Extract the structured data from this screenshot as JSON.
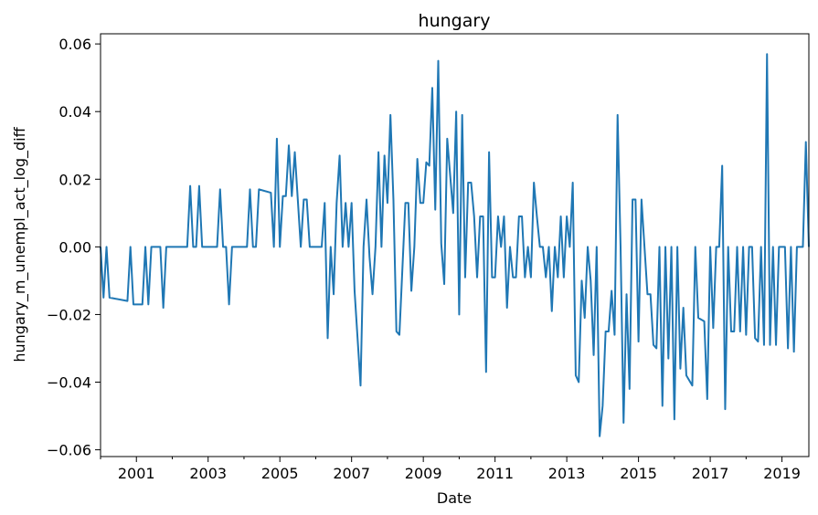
{
  "chart_data": {
    "type": "line",
    "title": "hungary",
    "xlabel": "Date",
    "ylabel": "hungary_m_unempl_act_log_diff",
    "xlim": [
      "2000-01",
      "2019-10"
    ],
    "ylim": [
      -0.062,
      0.063
    ],
    "x_ticks": [
      "2001",
      "2003",
      "2005",
      "2007",
      "2009",
      "2011",
      "2013",
      "2015",
      "2017",
      "2019"
    ],
    "y_ticks": [
      "−0.06",
      "−0.04",
      "−0.02",
      "0.00",
      "0.02",
      "0.04",
      "0.06"
    ],
    "grid": false,
    "series": [
      {
        "color": "#1f77b4",
        "points": [
          [
            "2000-01",
            0.0
          ],
          [
            "2000-02",
            -0.015
          ],
          [
            "2000-03",
            0.0
          ],
          [
            "2000-04",
            -0.015
          ],
          [
            "2000-10",
            -0.016
          ],
          [
            "2000-11",
            0.0
          ],
          [
            "2000-12",
            -0.017
          ],
          [
            "2001-03",
            -0.017
          ],
          [
            "2001-04",
            0.0
          ],
          [
            "2001-05",
            -0.017
          ],
          [
            "2001-06",
            0.0
          ],
          [
            "2001-09",
            0.0
          ],
          [
            "2001-10",
            -0.018
          ],
          [
            "2001-11",
            0.0
          ],
          [
            "2002-06",
            0.0
          ],
          [
            "2002-07",
            0.018
          ],
          [
            "2002-08",
            0.0
          ],
          [
            "2002-09",
            0.0
          ],
          [
            "2002-10",
            0.018
          ],
          [
            "2002-11",
            0.0
          ],
          [
            "2003-04",
            0.0
          ],
          [
            "2003-05",
            0.017
          ],
          [
            "2003-06",
            0.0
          ],
          [
            "2003-07",
            0.0
          ],
          [
            "2003-08",
            -0.017
          ],
          [
            "2003-09",
            0.0
          ],
          [
            "2004-02",
            0.0
          ],
          [
            "2004-03",
            0.017
          ],
          [
            "2004-04",
            0.0
          ],
          [
            "2004-05",
            0.0
          ],
          [
            "2004-06",
            0.017
          ],
          [
            "2004-10",
            0.016
          ],
          [
            "2004-11",
            0.0
          ],
          [
            "2004-12",
            0.032
          ],
          [
            "2005-01",
            0.0
          ],
          [
            "2005-02",
            0.015
          ],
          [
            "2005-03",
            0.015
          ],
          [
            "2005-04",
            0.03
          ],
          [
            "2005-05",
            0.015
          ],
          [
            "2005-06",
            0.028
          ],
          [
            "2005-07",
            0.014
          ],
          [
            "2005-08",
            0.0
          ],
          [
            "2005-09",
            0.014
          ],
          [
            "2005-10",
            0.014
          ],
          [
            "2005-11",
            0.0
          ],
          [
            "2006-03",
            0.0
          ],
          [
            "2006-04",
            0.013
          ],
          [
            "2006-05",
            -0.027
          ],
          [
            "2006-06",
            0.0
          ],
          [
            "2006-07",
            -0.014
          ],
          [
            "2006-08",
            0.013
          ],
          [
            "2006-09",
            0.027
          ],
          [
            "2006-10",
            0.0
          ],
          [
            "2006-11",
            0.013
          ],
          [
            "2006-12",
            0.0
          ],
          [
            "2007-01",
            0.013
          ],
          [
            "2007-02",
            -0.013
          ],
          [
            "2007-04",
            -0.041
          ],
          [
            "2007-05",
            0.0
          ],
          [
            "2007-06",
            0.014
          ],
          [
            "2007-07",
            -0.003
          ],
          [
            "2007-08",
            -0.014
          ],
          [
            "2007-09",
            0.0
          ],
          [
            "2007-10",
            0.028
          ],
          [
            "2007-11",
            0.0
          ],
          [
            "2007-12",
            0.027
          ],
          [
            "2008-01",
            0.013
          ],
          [
            "2008-02",
            0.039
          ],
          [
            "2008-03",
            0.014
          ],
          [
            "2008-04",
            -0.025
          ],
          [
            "2008-05",
            -0.026
          ],
          [
            "2008-07",
            0.013
          ],
          [
            "2008-08",
            0.013
          ],
          [
            "2008-09",
            -0.013
          ],
          [
            "2008-10",
            0.0
          ],
          [
            "2008-11",
            0.026
          ],
          [
            "2008-12",
            0.013
          ],
          [
            "2009-01",
            0.013
          ],
          [
            "2009-02",
            0.025
          ],
          [
            "2009-03",
            0.024
          ],
          [
            "2009-04",
            0.047
          ],
          [
            "2009-05",
            0.011
          ],
          [
            "2009-06",
            0.055
          ],
          [
            "2009-07",
            0.001
          ],
          [
            "2009-08",
            -0.011
          ],
          [
            "2009-09",
            0.032
          ],
          [
            "2009-10",
            0.021
          ],
          [
            "2009-11",
            0.01
          ],
          [
            "2009-12",
            0.04
          ],
          [
            "2010-01",
            -0.02
          ],
          [
            "2010-02",
            0.039
          ],
          [
            "2010-03",
            -0.009
          ],
          [
            "2010-04",
            0.019
          ],
          [
            "2010-05",
            0.019
          ],
          [
            "2010-06",
            0.009
          ],
          [
            "2010-07",
            -0.009
          ],
          [
            "2010-08",
            0.009
          ],
          [
            "2010-09",
            0.009
          ],
          [
            "2010-10",
            -0.037
          ],
          [
            "2010-11",
            0.028
          ],
          [
            "2010-12",
            -0.009
          ],
          [
            "2011-01",
            -0.009
          ],
          [
            "2011-02",
            0.009
          ],
          [
            "2011-03",
            0.0
          ],
          [
            "2011-04",
            0.009
          ],
          [
            "2011-05",
            -0.018
          ],
          [
            "2011-06",
            0.0
          ],
          [
            "2011-07",
            -0.009
          ],
          [
            "2011-08",
            -0.009
          ],
          [
            "2011-09",
            0.009
          ],
          [
            "2011-10",
            0.009
          ],
          [
            "2011-11",
            -0.009
          ],
          [
            "2011-12",
            0.0
          ],
          [
            "2012-01",
            -0.009
          ],
          [
            "2012-02",
            0.019
          ],
          [
            "2012-03",
            0.009
          ],
          [
            "2012-04",
            0.0
          ],
          [
            "2012-05",
            0.0
          ],
          [
            "2012-06",
            -0.009
          ],
          [
            "2012-07",
            0.0
          ],
          [
            "2012-08",
            -0.019
          ],
          [
            "2012-09",
            0.0
          ],
          [
            "2012-10",
            -0.009
          ],
          [
            "2012-11",
            0.009
          ],
          [
            "2012-12",
            -0.009
          ],
          [
            "2013-01",
            0.009
          ],
          [
            "2013-02",
            0.0
          ],
          [
            "2013-03",
            0.019
          ],
          [
            "2013-04",
            -0.038
          ],
          [
            "2013-05",
            -0.04
          ],
          [
            "2013-06",
            -0.01
          ],
          [
            "2013-07",
            -0.021
          ],
          [
            "2013-08",
            0.0
          ],
          [
            "2013-09",
            -0.01
          ],
          [
            "2013-10",
            -0.032
          ],
          [
            "2013-11",
            0.0
          ],
          [
            "2013-12",
            -0.056
          ],
          [
            "2014-01",
            -0.047
          ],
          [
            "2014-02",
            -0.025
          ],
          [
            "2014-03",
            -0.025
          ],
          [
            "2014-04",
            -0.013
          ],
          [
            "2014-05",
            -0.026
          ],
          [
            "2014-06",
            0.039
          ],
          [
            "2014-07",
            0.0
          ],
          [
            "2014-08",
            -0.052
          ],
          [
            "2014-09",
            -0.014
          ],
          [
            "2014-10",
            -0.042
          ],
          [
            "2014-11",
            0.014
          ],
          [
            "2014-12",
            0.014
          ],
          [
            "2015-01",
            -0.028
          ],
          [
            "2015-02",
            0.014
          ],
          [
            "2015-03",
            0.0
          ],
          [
            "2015-04",
            -0.014
          ],
          [
            "2015-05",
            -0.014
          ],
          [
            "2015-06",
            -0.029
          ],
          [
            "2015-07",
            -0.03
          ],
          [
            "2015-08",
            0.0
          ],
          [
            "2015-09",
            -0.047
          ],
          [
            "2015-10",
            0.0
          ],
          [
            "2015-11",
            -0.033
          ],
          [
            "2015-12",
            0.0
          ],
          [
            "2016-01",
            -0.051
          ],
          [
            "2016-02",
            0.0
          ],
          [
            "2016-03",
            -0.036
          ],
          [
            "2016-04",
            -0.018
          ],
          [
            "2016-05",
            -0.038
          ],
          [
            "2016-07",
            -0.041
          ],
          [
            "2016-08",
            0.0
          ],
          [
            "2016-09",
            -0.021
          ],
          [
            "2016-11",
            -0.022
          ],
          [
            "2016-12",
            -0.045
          ],
          [
            "2017-01",
            0.0
          ],
          [
            "2017-02",
            -0.024
          ],
          [
            "2017-03",
            0.0
          ],
          [
            "2017-04",
            0.0
          ],
          [
            "2017-05",
            0.024
          ],
          [
            "2017-06",
            -0.048
          ],
          [
            "2017-07",
            0.0
          ],
          [
            "2017-08",
            -0.025
          ],
          [
            "2017-09",
            -0.025
          ],
          [
            "2017-10",
            0.0
          ],
          [
            "2017-11",
            -0.025
          ],
          [
            "2017-12",
            0.0
          ],
          [
            "2018-01",
            -0.026
          ],
          [
            "2018-02",
            0.0
          ],
          [
            "2018-03",
            0.0
          ],
          [
            "2018-04",
            -0.027
          ],
          [
            "2018-05",
            -0.028
          ],
          [
            "2018-06",
            0.0
          ],
          [
            "2018-07",
            -0.029
          ],
          [
            "2018-08",
            0.057
          ],
          [
            "2018-09",
            -0.029
          ],
          [
            "2018-10",
            0.0
          ],
          [
            "2018-11",
            -0.029
          ],
          [
            "2018-12",
            0.0
          ],
          [
            "2019-01",
            0.0
          ],
          [
            "2019-02",
            0.0
          ],
          [
            "2019-03",
            -0.03
          ],
          [
            "2019-04",
            0.0
          ],
          [
            "2019-05",
            -0.031
          ],
          [
            "2019-06",
            0.0
          ],
          [
            "2019-07",
            0.0
          ],
          [
            "2019-08",
            0.0
          ],
          [
            "2019-09",
            0.031
          ],
          [
            "2019-10",
            0.0
          ]
        ]
      }
    ]
  }
}
